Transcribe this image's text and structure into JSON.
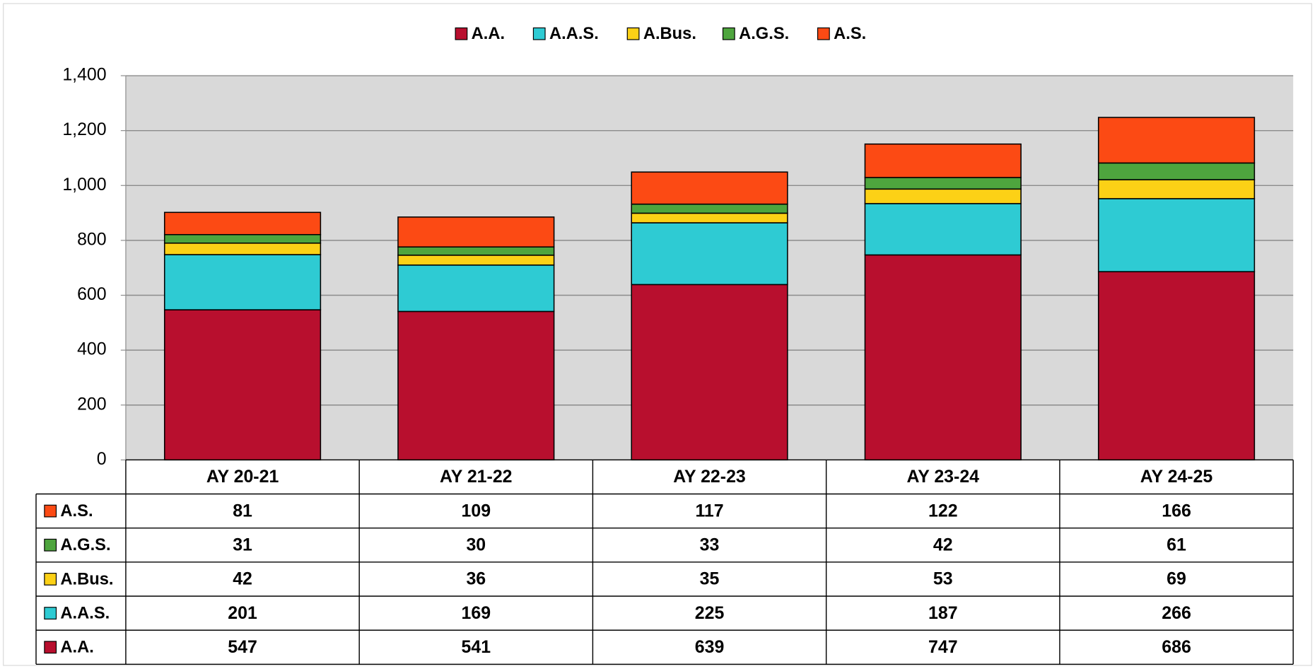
{
  "chart_data": {
    "type": "bar",
    "stacked": true,
    "categories": [
      "AY 20-21",
      "AY 21-22",
      "AY 22-23",
      "AY 23-24",
      "AY 24-25"
    ],
    "series": [
      {
        "name": "A.A.",
        "color": "#b80f2e",
        "values": [
          547,
          541,
          639,
          747,
          686
        ]
      },
      {
        "name": "A.A.S.",
        "color": "#2ecbd3",
        "values": [
          201,
          169,
          225,
          187,
          266
        ]
      },
      {
        "name": "A.Bus.",
        "color": "#fcd116",
        "values": [
          42,
          36,
          35,
          53,
          69
        ]
      },
      {
        "name": "A.G.S.",
        "color": "#4ea53e",
        "values": [
          31,
          30,
          33,
          42,
          61
        ]
      },
      {
        "name": "A.S.",
        "color": "#fc4a14",
        "values": [
          81,
          109,
          117,
          122,
          166
        ]
      }
    ],
    "ylim": [
      0,
      1400
    ],
    "yticks": [
      0,
      200,
      400,
      600,
      800,
      {
        "value": 1000,
        "label": "1,000"
      },
      {
        "value": 1200,
        "label": "1,200"
      },
      {
        "value": 1400,
        "label": "1,400"
      }
    ],
    "grid": true,
    "legend": "top",
    "data_table": true
  }
}
